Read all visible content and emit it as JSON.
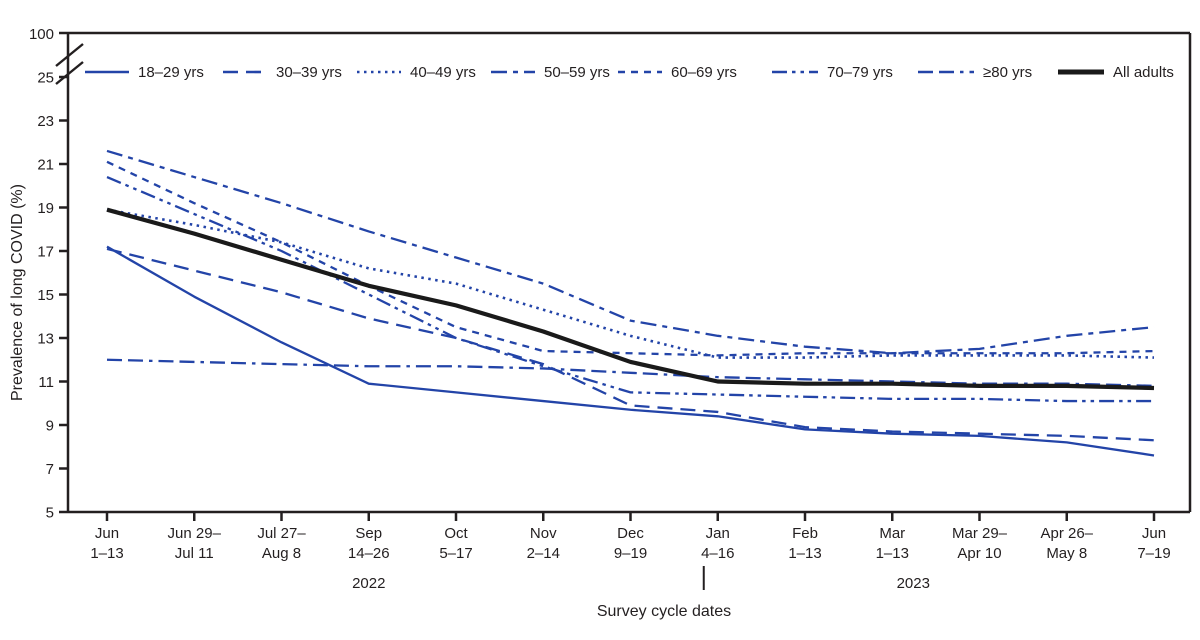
{
  "figure": {
    "background": "#ffffff",
    "accent_blue": "#2344a8",
    "ink_black": "#231f20"
  },
  "chart_data": {
    "type": "line",
    "title": "",
    "ylabel": "Prevalence of long COVID (%)",
    "xlabel": "Survey cycle dates",
    "ylim": [
      5,
      25
    ],
    "yticks": [
      5,
      7,
      9,
      11,
      13,
      15,
      17,
      19,
      21,
      23,
      25
    ],
    "y_axis_break_label": "100",
    "grid": false,
    "legend_position": "top-inside",
    "categories": [
      [
        "Jun",
        "1–13"
      ],
      [
        "Jun 29–",
        "Jul 11"
      ],
      [
        "Jul 27–",
        "Aug 8"
      ],
      [
        "Sep",
        "14–26"
      ],
      [
        "Oct",
        "5–17"
      ],
      [
        "Nov",
        "2–14"
      ],
      [
        "Dec",
        "9–19"
      ],
      [
        "Jan",
        "4–16"
      ],
      [
        "Feb",
        "1–13"
      ],
      [
        "Mar",
        "1–13"
      ],
      [
        "Mar 29–",
        "Apr 10"
      ],
      [
        "Apr 26–",
        "May 8"
      ],
      [
        "Jun",
        "7–19"
      ]
    ],
    "year_labels": [
      {
        "text": "2022",
        "at_index": 3
      },
      {
        "text": "2023",
        "at_index": 9,
        "x_offset": 21
      }
    ],
    "year_separator_at_index": 7,
    "series": [
      {
        "name": "18–29 yrs",
        "color": "#2344a8",
        "width": 2.3,
        "dash": "solid",
        "values": [
          17.2,
          14.9,
          12.8,
          10.9,
          10.5,
          10.1,
          9.7,
          9.4,
          8.8,
          8.6,
          8.5,
          8.2,
          7.6
        ]
      },
      {
        "name": "30–39 yrs",
        "color": "#2344a8",
        "width": 2.3,
        "dash": "long-dash",
        "values": [
          17.1,
          16.1,
          15.1,
          13.9,
          13.0,
          11.8,
          9.9,
          9.6,
          8.9,
          8.7,
          8.6,
          8.5,
          8.3
        ]
      },
      {
        "name": "40–49 yrs",
        "color": "#2344a8",
        "width": 2.6,
        "dash": "dotted",
        "values": [
          18.9,
          18.2,
          17.4,
          16.2,
          15.5,
          14.3,
          13.1,
          12.1,
          12.1,
          12.2,
          12.2,
          12.2,
          12.1
        ]
      },
      {
        "name": "50–59 yrs",
        "color": "#2344a8",
        "width": 2.3,
        "dash": "dash-dot",
        "values": [
          21.6,
          20.4,
          19.2,
          17.9,
          16.7,
          15.5,
          13.8,
          13.1,
          12.6,
          12.3,
          12.5,
          13.1,
          13.5
        ]
      },
      {
        "name": "60–69 yrs",
        "color": "#2344a8",
        "width": 2.3,
        "dash": "short-dash",
        "values": [
          21.1,
          19.2,
          17.4,
          15.4,
          13.5,
          12.4,
          12.3,
          12.2,
          12.3,
          12.3,
          12.3,
          12.3,
          12.4
        ]
      },
      {
        "name": "70–79 yrs",
        "color": "#2344a8",
        "width": 2.3,
        "dash": "dash-dot-dot",
        "values": [
          20.4,
          18.7,
          17.0,
          15.0,
          13.0,
          11.7,
          10.5,
          10.4,
          10.3,
          10.2,
          10.2,
          10.1,
          10.1
        ]
      },
      {
        "name": "≥80 yrs",
        "color": "#2344a8",
        "width": 2.3,
        "dash": "dash-dash-dot",
        "values": [
          12.0,
          11.9,
          11.8,
          11.7,
          11.7,
          11.6,
          11.4,
          11.2,
          11.1,
          11.0,
          10.9,
          10.9,
          10.8
        ]
      },
      {
        "name": "All adults",
        "color": "#1a1a1a",
        "width": 4.2,
        "dash": "solid",
        "values": [
          18.9,
          17.8,
          16.6,
          15.4,
          14.5,
          13.3,
          11.9,
          11.0,
          10.9,
          10.9,
          10.8,
          10.8,
          10.7
        ]
      }
    ]
  }
}
